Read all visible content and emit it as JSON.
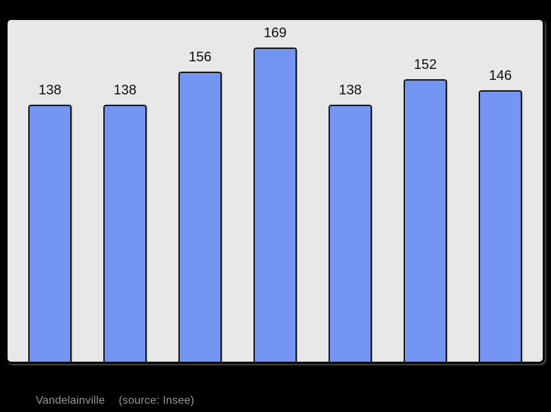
{
  "page": {
    "background_color": "#000000"
  },
  "chart_data": {
    "type": "bar",
    "title": "",
    "xlabel": "",
    "ylabel": "",
    "categories": [
      "",
      "",
      "",
      "",
      "",
      "",
      ""
    ],
    "values": [
      138,
      138,
      156,
      169,
      138,
      152,
      146
    ],
    "value_labels": [
      "138",
      "138",
      "156",
      "169",
      "138",
      "152",
      "146"
    ],
    "ylim": [
      0,
      185
    ],
    "grid": false,
    "legend": false,
    "bar_color": "#7496f2",
    "bar_border_color": "#141414",
    "panel_background": "#e8e8e8",
    "panel_border_color": "#000000",
    "value_label_color": "#111111"
  },
  "footer": {
    "commune": "Vandelainville",
    "source": "(source: Insee)",
    "text_color": "#999999"
  }
}
